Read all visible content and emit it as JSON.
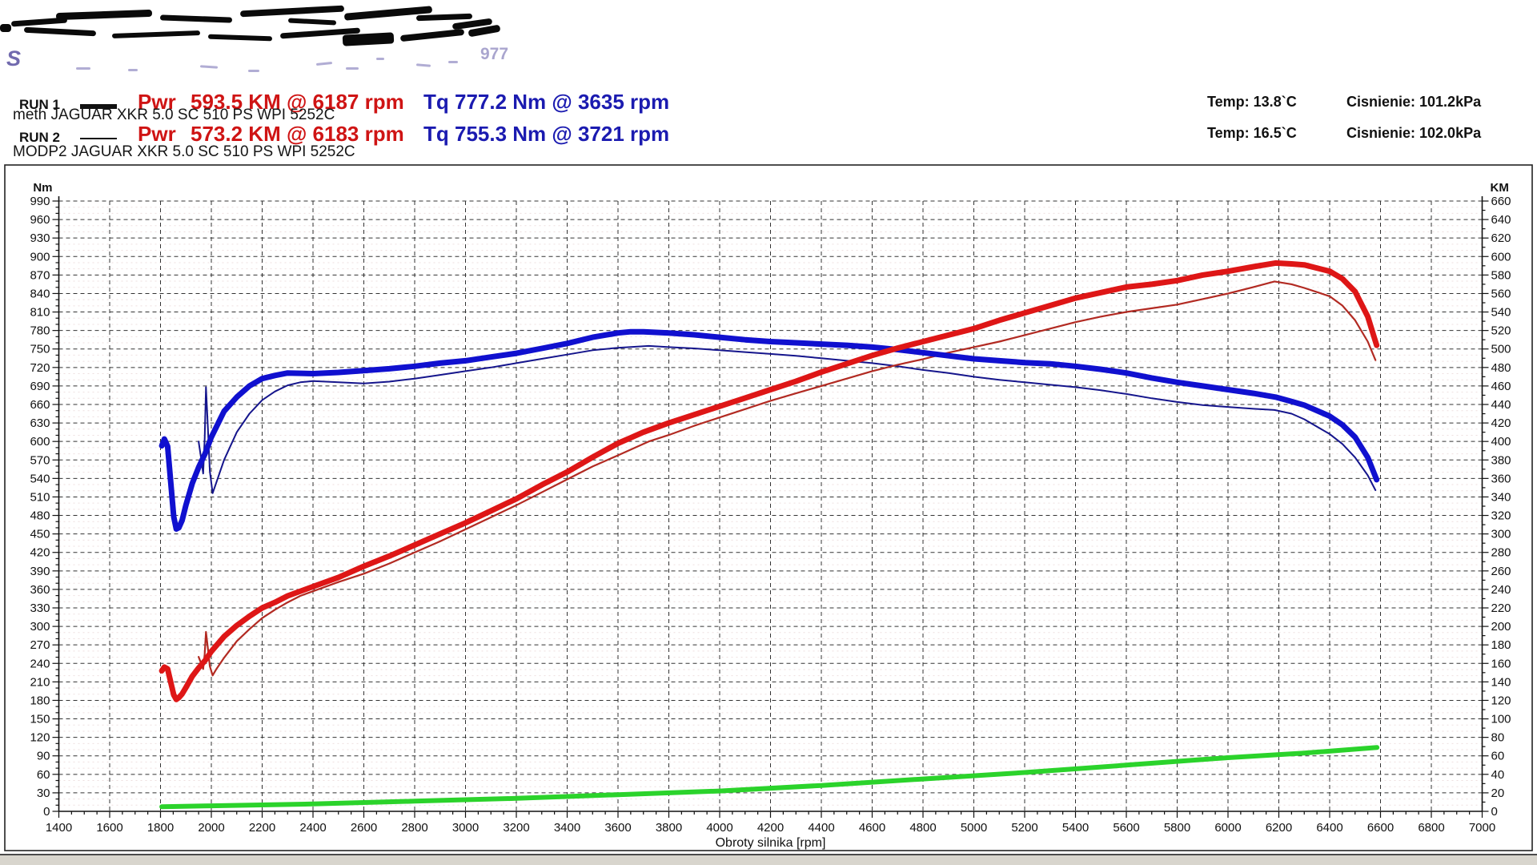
{
  "header": {
    "redacted": true,
    "partial_fragments": {
      "left_letter": "S",
      "right_digits": "977"
    },
    "runs": [
      {
        "label": "RUN 1",
        "power_label": "Pwr",
        "power": "593.5 KM @ 6187 rpm",
        "torque": "Tq 777.2 Nm @ 3635 rpm",
        "temp": "Temp: 13.8`C",
        "pressure": "Cisnienie: 101.2kPa",
        "desc": "meth JAGUAR XKR 5.0 SC 510 PS WPI 5252C",
        "line_style": "thick"
      },
      {
        "label": "RUN 2",
        "power_label": "Pwr",
        "power": "573.2 KM @ 6183 rpm",
        "torque": "Tq 755.3 Nm @ 3721 rpm",
        "temp": "Temp: 16.5`C",
        "pressure": "Cisnienie: 102.0kPa",
        "desc": "MODP2 JAGUAR XKR 5.0 SC 510 PS WPI 5252C",
        "line_style": "thin"
      }
    ]
  },
  "colors": {
    "torque_run1": "#1010cf",
    "torque_run2": "#15158c",
    "power_run1": "#de1616",
    "power_run2": "#b22a22",
    "speed_green": "#2bd32b",
    "grid": "#333333",
    "minor_grid": "#eedfdf",
    "value_red": "#cf1414",
    "value_blue": "#1b1bb0"
  },
  "chart_data": {
    "type": "line",
    "title": "",
    "xlabel": "Obroty silnika [rpm]",
    "x_axis": {
      "min": 1400,
      "max": 7000,
      "step": 200,
      "minor_step": 50
    },
    "left_axis": {
      "label": "Nm",
      "min": 0,
      "max": 990,
      "step": 30,
      "minor_step": 10
    },
    "right_axis": {
      "label": "KM",
      "min": 0,
      "max": 660,
      "step": 20,
      "minor_step": 10
    },
    "grid": "dashed",
    "legend_position": "header",
    "series": [
      {
        "name": "torque_run2",
        "axis": "left",
        "style": "thin",
        "width": 2,
        "points": [
          [
            1950,
            600
          ],
          [
            1960,
            572
          ],
          [
            1968,
            548
          ],
          [
            1974,
            605
          ],
          [
            1979,
            688
          ],
          [
            1986,
            625
          ],
          [
            1994,
            552
          ],
          [
            2005,
            516
          ],
          [
            2020,
            534
          ],
          [
            2050,
            570
          ],
          [
            2100,
            615
          ],
          [
            2150,
            645
          ],
          [
            2200,
            667
          ],
          [
            2250,
            681
          ],
          [
            2300,
            691
          ],
          [
            2350,
            696
          ],
          [
            2400,
            698
          ],
          [
            2500,
            696
          ],
          [
            2600,
            694
          ],
          [
            2700,
            697
          ],
          [
            2800,
            702
          ],
          [
            2900,
            708
          ],
          [
            3000,
            714
          ],
          [
            3100,
            720
          ],
          [
            3200,
            727
          ],
          [
            3300,
            734
          ],
          [
            3400,
            741
          ],
          [
            3500,
            748
          ],
          [
            3600,
            752
          ],
          [
            3721,
            755
          ],
          [
            3800,
            753
          ],
          [
            3900,
            751
          ],
          [
            4000,
            748
          ],
          [
            4100,
            745
          ],
          [
            4200,
            742
          ],
          [
            4300,
            739
          ],
          [
            4400,
            735
          ],
          [
            4500,
            731
          ],
          [
            4600,
            727
          ],
          [
            4700,
            722
          ],
          [
            4800,
            716
          ],
          [
            4900,
            711
          ],
          [
            5000,
            705
          ],
          [
            5100,
            700
          ],
          [
            5200,
            696
          ],
          [
            5300,
            692
          ],
          [
            5400,
            688
          ],
          [
            5500,
            683
          ],
          [
            5600,
            677
          ],
          [
            5700,
            670
          ],
          [
            5800,
            664
          ],
          [
            5900,
            659
          ],
          [
            6000,
            656
          ],
          [
            6100,
            653
          ],
          [
            6183,
            651
          ],
          [
            6250,
            645
          ],
          [
            6300,
            636
          ],
          [
            6400,
            612
          ],
          [
            6450,
            596
          ],
          [
            6500,
            574
          ],
          [
            6550,
            545
          ],
          [
            6580,
            521
          ]
        ]
      },
      {
        "name": "power_run2",
        "axis": "right",
        "style": "thin",
        "width": 2.2,
        "points": [
          [
            1950,
            167
          ],
          [
            1960,
            160
          ],
          [
            1968,
            154
          ],
          [
            1974,
            170
          ],
          [
            1979,
            194
          ],
          [
            1986,
            177
          ],
          [
            1994,
            157
          ],
          [
            2005,
            147
          ],
          [
            2020,
            154
          ],
          [
            2050,
            166
          ],
          [
            2100,
            184
          ],
          [
            2150,
            197
          ],
          [
            2200,
            209
          ],
          [
            2250,
            218
          ],
          [
            2300,
            226
          ],
          [
            2350,
            233
          ],
          [
            2400,
            238
          ],
          [
            2500,
            248
          ],
          [
            2600,
            257
          ],
          [
            2700,
            268
          ],
          [
            2800,
            280
          ],
          [
            2900,
            292
          ],
          [
            3000,
            305
          ],
          [
            3100,
            318
          ],
          [
            3200,
            331
          ],
          [
            3300,
            345
          ],
          [
            3400,
            359
          ],
          [
            3500,
            373
          ],
          [
            3600,
            385
          ],
          [
            3721,
            400
          ],
          [
            3800,
            407
          ],
          [
            3900,
            417
          ],
          [
            4000,
            426
          ],
          [
            4100,
            435
          ],
          [
            4200,
            444
          ],
          [
            4300,
            452
          ],
          [
            4400,
            460
          ],
          [
            4500,
            468
          ],
          [
            4600,
            476
          ],
          [
            4700,
            483
          ],
          [
            4800,
            489
          ],
          [
            4900,
            496
          ],
          [
            5000,
            502
          ],
          [
            5100,
            508
          ],
          [
            5200,
            515
          ],
          [
            5300,
            522
          ],
          [
            5400,
            529
          ],
          [
            5500,
            535
          ],
          [
            5600,
            540
          ],
          [
            5700,
            544
          ],
          [
            5800,
            548
          ],
          [
            5900,
            554
          ],
          [
            6000,
            560
          ],
          [
            6100,
            567
          ],
          [
            6183,
            573
          ],
          [
            6250,
            570
          ],
          [
            6300,
            566
          ],
          [
            6400,
            557
          ],
          [
            6450,
            547
          ],
          [
            6500,
            531
          ],
          [
            6550,
            508
          ],
          [
            6580,
            488
          ]
        ]
      },
      {
        "name": "torque_run1",
        "axis": "left",
        "style": "thick",
        "width": 7,
        "points": [
          [
            1805,
            593
          ],
          [
            1815,
            604
          ],
          [
            1828,
            592
          ],
          [
            1840,
            535
          ],
          [
            1852,
            478
          ],
          [
            1862,
            458
          ],
          [
            1872,
            460
          ],
          [
            1885,
            472
          ],
          [
            1900,
            497
          ],
          [
            1925,
            532
          ],
          [
            1950,
            558
          ],
          [
            1975,
            580
          ],
          [
            2000,
            607
          ],
          [
            2050,
            649
          ],
          [
            2100,
            672
          ],
          [
            2150,
            690
          ],
          [
            2200,
            702
          ],
          [
            2250,
            707
          ],
          [
            2300,
            711
          ],
          [
            2400,
            710
          ],
          [
            2500,
            712
          ],
          [
            2600,
            715
          ],
          [
            2700,
            718
          ],
          [
            2800,
            722
          ],
          [
            2900,
            727
          ],
          [
            3000,
            731
          ],
          [
            3100,
            737
          ],
          [
            3200,
            743
          ],
          [
            3300,
            751
          ],
          [
            3400,
            759
          ],
          [
            3500,
            769
          ],
          [
            3600,
            776
          ],
          [
            3650,
            778
          ],
          [
            3700,
            778
          ],
          [
            3800,
            776
          ],
          [
            3900,
            773
          ],
          [
            4000,
            769
          ],
          [
            4100,
            765
          ],
          [
            4200,
            762
          ],
          [
            4300,
            760
          ],
          [
            4400,
            758
          ],
          [
            4500,
            756
          ],
          [
            4600,
            753
          ],
          [
            4700,
            749
          ],
          [
            4800,
            744
          ],
          [
            4900,
            739
          ],
          [
            5000,
            734
          ],
          [
            5100,
            731
          ],
          [
            5200,
            728
          ],
          [
            5300,
            726
          ],
          [
            5400,
            722
          ],
          [
            5500,
            717
          ],
          [
            5600,
            711
          ],
          [
            5700,
            703
          ],
          [
            5800,
            696
          ],
          [
            5900,
            690
          ],
          [
            6000,
            684
          ],
          [
            6100,
            678
          ],
          [
            6187,
            672
          ],
          [
            6250,
            665
          ],
          [
            6300,
            659
          ],
          [
            6400,
            641
          ],
          [
            6450,
            627
          ],
          [
            6500,
            607
          ],
          [
            6550,
            574
          ],
          [
            6585,
            538
          ]
        ]
      },
      {
        "name": "power_run1",
        "axis": "right",
        "style": "thick",
        "width": 7,
        "points": [
          [
            1805,
            152
          ],
          [
            1815,
            156
          ],
          [
            1828,
            154
          ],
          [
            1840,
            140
          ],
          [
            1852,
            126
          ],
          [
            1862,
            121
          ],
          [
            1872,
            123
          ],
          [
            1885,
            127
          ],
          [
            1900,
            134
          ],
          [
            1925,
            146
          ],
          [
            1950,
            155
          ],
          [
            1975,
            163
          ],
          [
            2000,
            173
          ],
          [
            2050,
            189
          ],
          [
            2100,
            201
          ],
          [
            2150,
            211
          ],
          [
            2200,
            220
          ],
          [
            2250,
            226
          ],
          [
            2300,
            233
          ],
          [
            2400,
            243
          ],
          [
            2500,
            253
          ],
          [
            2600,
            265
          ],
          [
            2700,
            276
          ],
          [
            2800,
            288
          ],
          [
            2900,
            300
          ],
          [
            3000,
            312
          ],
          [
            3100,
            325
          ],
          [
            3200,
            338
          ],
          [
            3300,
            353
          ],
          [
            3400,
            367
          ],
          [
            3500,
            383
          ],
          [
            3600,
            398
          ],
          [
            3650,
            404
          ],
          [
            3700,
            410
          ],
          [
            3800,
            420
          ],
          [
            3900,
            429
          ],
          [
            4000,
            438
          ],
          [
            4100,
            447
          ],
          [
            4200,
            456
          ],
          [
            4300,
            465
          ],
          [
            4400,
            475
          ],
          [
            4500,
            484
          ],
          [
            4600,
            493
          ],
          [
            4700,
            501
          ],
          [
            4800,
            508
          ],
          [
            4900,
            515
          ],
          [
            5000,
            522
          ],
          [
            5100,
            531
          ],
          [
            5200,
            539
          ],
          [
            5300,
            547
          ],
          [
            5400,
            555
          ],
          [
            5500,
            561
          ],
          [
            5600,
            567
          ],
          [
            5700,
            570
          ],
          [
            5800,
            574
          ],
          [
            5900,
            580
          ],
          [
            6000,
            584
          ],
          [
            6100,
            589
          ],
          [
            6187,
            593
          ],
          [
            6250,
            592
          ],
          [
            6300,
            591
          ],
          [
            6400,
            584
          ],
          [
            6450,
            576
          ],
          [
            6500,
            562
          ],
          [
            6550,
            535
          ],
          [
            6585,
            504
          ]
        ]
      },
      {
        "name": "speed_green",
        "axis": "right",
        "style": "thick",
        "width": 6,
        "points": [
          [
            1805,
            5
          ],
          [
            2000,
            6
          ],
          [
            2400,
            8
          ],
          [
            2800,
            11
          ],
          [
            3200,
            14
          ],
          [
            3600,
            18
          ],
          [
            4000,
            22
          ],
          [
            4400,
            28
          ],
          [
            4800,
            35
          ],
          [
            5200,
            42
          ],
          [
            5600,
            50
          ],
          [
            6000,
            58
          ],
          [
            6300,
            63
          ],
          [
            6586,
            69
          ]
        ]
      }
    ]
  }
}
